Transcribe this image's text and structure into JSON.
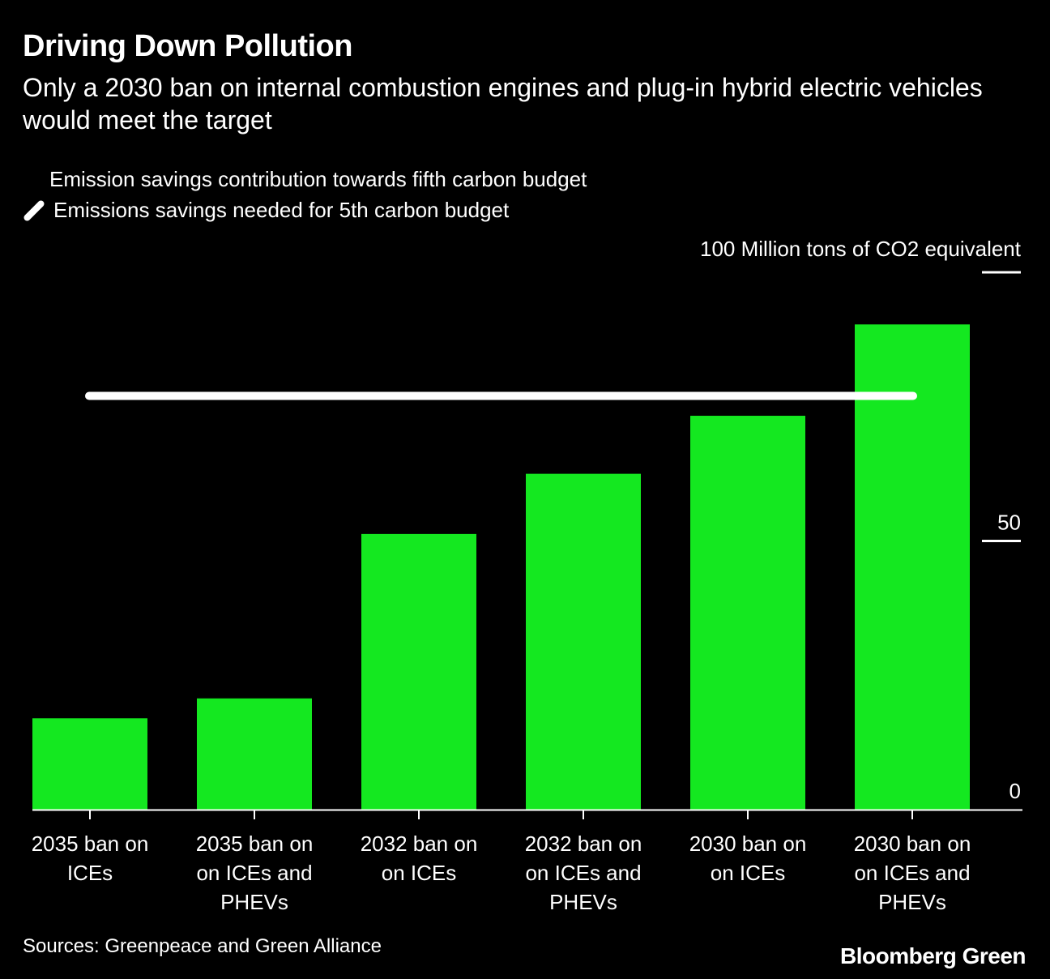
{
  "chart_data": {
    "type": "bar",
    "title": "Driving Down Pollution",
    "subtitle": "Only a 2030 ban on internal combustion engines and plug-in hybrid electric vehicles would meet the target",
    "unit_label": "100 Million tons of CO2 equivalent",
    "categories": [
      [
        "2035 ban on",
        "ICEs"
      ],
      [
        "2035 ban on",
        "on ICEs and",
        "PHEVs"
      ],
      [
        "2032 ban on",
        "on ICEs"
      ],
      [
        "2032 ban on",
        "on ICEs and",
        "PHEVs"
      ],
      [
        "2030 ban on",
        "on ICEs"
      ],
      [
        "2030 ban on",
        "on ICEs and",
        "PHEVs"
      ]
    ],
    "series": [
      {
        "name": "Emission savings contribution towards fifth carbon budget",
        "values": [
          17,
          20.7,
          51.3,
          62.5,
          73.3,
          90.3
        ],
        "color": "#14e820"
      }
    ],
    "reference_line": {
      "name": "Emissions savings needed for 5th carbon budget",
      "value": 77,
      "color": "#ffffff"
    },
    "ylim": [
      0,
      100
    ],
    "yticks": [
      {
        "value": 0,
        "label": "0"
      },
      {
        "value": 50,
        "label": "50"
      },
      {
        "value": 100,
        "label": ""
      }
    ],
    "grid": false,
    "legend_position": "top-left"
  },
  "source": "Sources: Greenpeace and Green Alliance",
  "brand": "Bloomberg Green"
}
